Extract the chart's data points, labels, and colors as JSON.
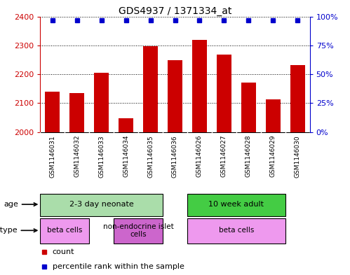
{
  "title": "GDS4937 / 1371334_at",
  "samples": [
    "GSM1146031",
    "GSM1146032",
    "GSM1146033",
    "GSM1146034",
    "GSM1146035",
    "GSM1146036",
    "GSM1146026",
    "GSM1146027",
    "GSM1146028",
    "GSM1146029",
    "GSM1146030"
  ],
  "counts": [
    2140,
    2135,
    2205,
    2047,
    2298,
    2248,
    2318,
    2268,
    2172,
    2113,
    2232
  ],
  "ylim": [
    2000,
    2400
  ],
  "yticks": [
    2000,
    2100,
    2200,
    2300,
    2400
  ],
  "y2lim": [
    0,
    100
  ],
  "y2ticks": [
    0,
    25,
    50,
    75,
    100
  ],
  "y2ticklabels": [
    "0%",
    "25%",
    "50%",
    "75%",
    "100%"
  ],
  "bar_color": "#cc0000",
  "dot_color": "#0000cc",
  "bar_width": 0.6,
  "age_groups": [
    {
      "label": "2-3 day neonate",
      "start": 0,
      "end": 5,
      "color": "#aaddaa"
    },
    {
      "label": "10 week adult",
      "start": 6,
      "end": 10,
      "color": "#44cc44"
    }
  ],
  "cell_type_groups": [
    {
      "label": "beta cells",
      "start": 0,
      "end": 3,
      "color": "#ee99ee"
    },
    {
      "label": "non-endocrine islet\ncells",
      "start": 3,
      "end": 5,
      "color": "#cc66cc"
    },
    {
      "label": "beta cells",
      "start": 6,
      "end": 10,
      "color": "#ee99ee"
    }
  ],
  "legend_count_color": "#cc0000",
  "legend_dot_color": "#0000cc",
  "background_color": "#ffffff",
  "tick_label_color_left": "#cc0000",
  "tick_label_color_right": "#0000cc",
  "sample_bg_color": "#cccccc",
  "age_border_color": "#000000",
  "cell_border_color": "#000000"
}
